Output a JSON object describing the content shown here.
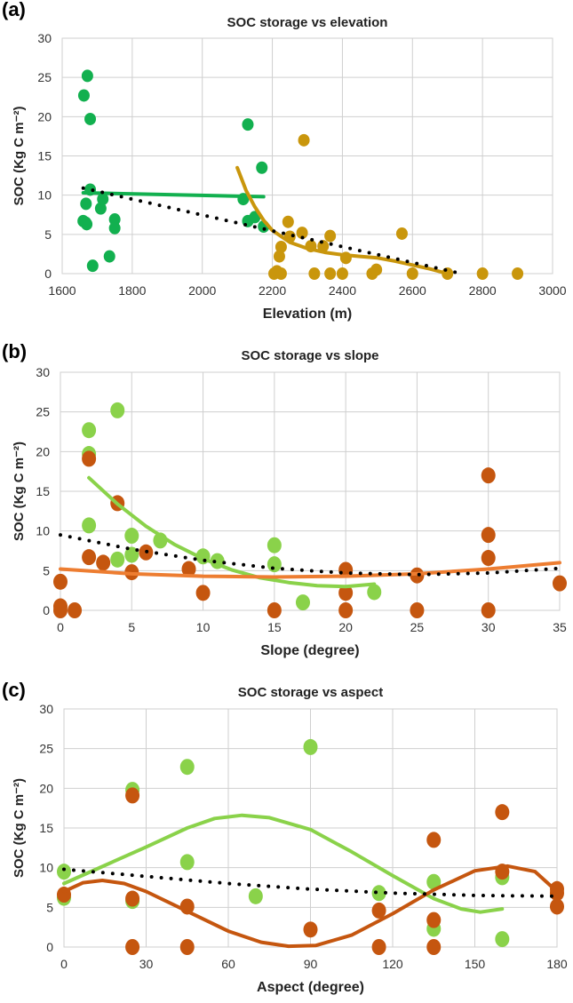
{
  "chart_data": [
    {
      "panel_label": "(a)",
      "type": "scatter",
      "title": "SOC storage vs elevation",
      "xlabel": "Elevation (m)",
      "ylabel": "SOC (Kg C m⁻²)",
      "xlim": [
        1600,
        3000
      ],
      "ylim": [
        0,
        30
      ],
      "xticks": [
        1600,
        1800,
        2000,
        2200,
        2400,
        2600,
        2800,
        3000
      ],
      "yticks": [
        0,
        5,
        10,
        15,
        20,
        25,
        30
      ],
      "grid": true,
      "series": [
        {
          "name": "low elevation",
          "color": "#12b04f",
          "kind": "points",
          "points": [
            [
              1662,
              22.7
            ],
            [
              1672,
              25.2
            ],
            [
              1680,
              19.7
            ],
            [
              1680,
              10.7
            ],
            [
              1668,
              8.9
            ],
            [
              1660,
              6.7
            ],
            [
              1670,
              6.3
            ],
            [
              1667,
              6.5
            ],
            [
              1687,
              1.0
            ],
            [
              1710,
              8.3
            ],
            [
              1716,
              9.5
            ],
            [
              1750,
              6.9
            ],
            [
              1750,
              5.8
            ],
            [
              1735,
              2.2
            ],
            [
              2130,
              19.0
            ],
            [
              2117,
              9.5
            ],
            [
              2130,
              6.7
            ],
            [
              2170,
              13.5
            ],
            [
              2150,
              7.2
            ],
            [
              2175,
              6.0
            ]
          ]
        },
        {
          "name": "high elevation",
          "color": "#c9960c",
          "kind": "points",
          "points": [
            [
              2290,
              17.0
            ],
            [
              2245,
              6.6
            ],
            [
              2285,
              5.2
            ],
            [
              2365,
              4.8
            ],
            [
              2570,
              5.1
            ],
            [
              2225,
              3.4
            ],
            [
              2220,
              2.2
            ],
            [
              2205,
              0
            ],
            [
              2213,
              0.3
            ],
            [
              2225,
              0
            ],
            [
              2320,
              0
            ],
            [
              2365,
              0
            ],
            [
              2400,
              0
            ],
            [
              2410,
              2.0
            ],
            [
              2310,
              3.5
            ],
            [
              2345,
              3.5
            ],
            [
              2485,
              0
            ],
            [
              2497,
              0.5
            ],
            [
              2600,
              0
            ],
            [
              2700,
              0
            ],
            [
              2800,
              0
            ],
            [
              2900,
              0
            ],
            [
              2250,
              4.7
            ]
          ]
        },
        {
          "name": "low elevation trend",
          "color": "#12b04f",
          "kind": "line",
          "points": [
            [
              1660,
              10.3
            ],
            [
              2175,
              9.8
            ]
          ]
        },
        {
          "name": "high elevation trend",
          "color": "#c9960c",
          "kind": "line",
          "points": [
            [
              2100,
              13.5
            ],
            [
              2125,
              10.6
            ],
            [
              2150,
              8.5
            ],
            [
              2175,
              6.8
            ],
            [
              2200,
              5.5
            ],
            [
              2250,
              4.0
            ],
            [
              2300,
              3.2
            ],
            [
              2350,
              2.7
            ],
            [
              2400,
              2.4
            ],
            [
              2450,
              2.2
            ],
            [
              2500,
              2.0
            ],
            [
              2550,
              1.6
            ],
            [
              2600,
              1.1
            ],
            [
              2650,
              0.6
            ],
            [
              2700,
              0
            ]
          ]
        },
        {
          "name": "overall trend",
          "color": "#000000",
          "kind": "dotted",
          "points": [
            [
              1660,
              10.9
            ],
            [
              2740,
              0
            ]
          ]
        }
      ]
    },
    {
      "panel_label": "(b)",
      "type": "scatter",
      "title": "SOC storage vs slope",
      "xlabel": "Slope (degree)",
      "ylabel": "SOC (Kg C m⁻²)",
      "xlim": [
        0,
        35
      ],
      "ylim": [
        0,
        30
      ],
      "xticks": [
        0,
        5,
        10,
        15,
        20,
        25,
        30,
        35
      ],
      "yticks": [
        0,
        5,
        10,
        15,
        20,
        25,
        30
      ],
      "grid": true,
      "series": [
        {
          "name": "green group",
          "color": "#8ad24a",
          "kind": "points",
          "points": [
            [
              2,
              22.7
            ],
            [
              2,
              19.7
            ],
            [
              4,
              25.2
            ],
            [
              2,
              10.7
            ],
            [
              4,
              6.4
            ],
            [
              5,
              9.4
            ],
            [
              5,
              7.0
            ],
            [
              7,
              8.8
            ],
            [
              10,
              6.8
            ],
            [
              11,
              6.2
            ],
            [
              15,
              8.2
            ],
            [
              15,
              5.8
            ],
            [
              17,
              1.0
            ],
            [
              22,
              2.3
            ]
          ]
        },
        {
          "name": "brown group",
          "color": "#c5560f",
          "kind": "points",
          "points": [
            [
              2,
              19.1
            ],
            [
              4,
              13.5
            ],
            [
              2,
              6.7
            ],
            [
              3,
              6.0
            ],
            [
              6,
              7.3
            ],
            [
              5,
              4.8
            ],
            [
              9,
              5.2
            ],
            [
              10,
              2.2
            ],
            [
              0,
              3.6
            ],
            [
              0,
              0.5
            ],
            [
              0,
              0
            ],
            [
              1,
              0
            ],
            [
              15,
              0
            ],
            [
              20,
              5.1
            ],
            [
              20,
              2.2
            ],
            [
              20,
              0
            ],
            [
              25,
              4.4
            ],
            [
              25,
              0
            ],
            [
              30,
              17.0
            ],
            [
              30,
              9.5
            ],
            [
              30,
              6.6
            ],
            [
              30,
              0
            ],
            [
              35,
              3.4
            ]
          ]
        },
        {
          "name": "green trend",
          "color": "#8ad24a",
          "kind": "line",
          "points": [
            [
              2,
              16.7
            ],
            [
              4,
              13.4
            ],
            [
              6,
              10.6
            ],
            [
              8,
              8.3
            ],
            [
              10,
              6.5
            ],
            [
              12,
              5.1
            ],
            [
              14,
              4.1
            ],
            [
              16,
              3.5
            ],
            [
              18,
              3.1
            ],
            [
              20,
              3.0
            ],
            [
              22,
              3.3
            ]
          ]
        },
        {
          "name": "brown trend",
          "color": "#ed7d31",
          "kind": "line",
          "points": [
            [
              0,
              5.2
            ],
            [
              5,
              4.6
            ],
            [
              10,
              4.3
            ],
            [
              15,
              4.2
            ],
            [
              20,
              4.3
            ],
            [
              25,
              4.6
            ],
            [
              30,
              5.2
            ],
            [
              35,
              6.0
            ]
          ]
        },
        {
          "name": "overall trend",
          "color": "#000000",
          "kind": "dotted",
          "points": [
            [
              0,
              9.5
            ],
            [
              5,
              7.7
            ],
            [
              10,
              6.3
            ],
            [
              15,
              5.3
            ],
            [
              20,
              4.7
            ],
            [
              25,
              4.5
            ],
            [
              30,
              4.7
            ],
            [
              35,
              5.3
            ]
          ]
        }
      ]
    },
    {
      "panel_label": "(c)",
      "type": "scatter",
      "title": "SOC storage vs aspect",
      "xlabel": "Aspect (degree)",
      "ylabel": "SOC (Kg C m⁻²)",
      "xlim": [
        0,
        180
      ],
      "ylim": [
        0,
        30
      ],
      "xticks": [
        0,
        30,
        60,
        90,
        120,
        150,
        180
      ],
      "yticks": [
        0,
        5,
        10,
        15,
        20,
        25,
        30
      ],
      "grid": true,
      "series": [
        {
          "name": "green group",
          "color": "#8ad24a",
          "kind": "points",
          "points": [
            [
              0,
              9.5
            ],
            [
              0,
              6.2
            ],
            [
              25,
              19.8
            ],
            [
              25,
              5.8
            ],
            [
              45,
              22.7
            ],
            [
              45,
              10.7
            ],
            [
              70,
              6.4
            ],
            [
              90,
              25.2
            ],
            [
              115,
              6.8
            ],
            [
              135,
              8.2
            ],
            [
              135,
              2.3
            ],
            [
              160,
              8.8
            ],
            [
              160,
              1.0
            ]
          ]
        },
        {
          "name": "brown group",
          "color": "#c5560f",
          "kind": "points",
          "points": [
            [
              0,
              6.6
            ],
            [
              25,
              19.1
            ],
            [
              25,
              6.1
            ],
            [
              25,
              0
            ],
            [
              45,
              5.1
            ],
            [
              45,
              0
            ],
            [
              90,
              2.2
            ],
            [
              115,
              4.6
            ],
            [
              115,
              0
            ],
            [
              135,
              13.5
            ],
            [
              135,
              3.4
            ],
            [
              135,
              0
            ],
            [
              160,
              17.0
            ],
            [
              160,
              9.5
            ],
            [
              180,
              7.3
            ],
            [
              180,
              6.8
            ],
            [
              180,
              5.1
            ]
          ]
        },
        {
          "name": "green trend",
          "color": "#8ad24a",
          "kind": "line",
          "points": [
            [
              0,
              8.0
            ],
            [
              15,
              10.3
            ],
            [
              30,
              12.6
            ],
            [
              45,
              15.0
            ],
            [
              55,
              16.2
            ],
            [
              65,
              16.6
            ],
            [
              75,
              16.3
            ],
            [
              90,
              14.8
            ],
            [
              105,
              12.0
            ],
            [
              120,
              9.0
            ],
            [
              135,
              6.1
            ],
            [
              145,
              4.8
            ],
            [
              152,
              4.4
            ],
            [
              160,
              4.8
            ]
          ]
        },
        {
          "name": "brown trend",
          "color": "#c5560f",
          "kind": "line",
          "points": [
            [
              0,
              7.0
            ],
            [
              7,
              8.1
            ],
            [
              14,
              8.4
            ],
            [
              22,
              8.0
            ],
            [
              30,
              7.0
            ],
            [
              45,
              4.5
            ],
            [
              60,
              2.0
            ],
            [
              72,
              0.6
            ],
            [
              82,
              0.1
            ],
            [
              92,
              0.2
            ],
            [
              105,
              1.5
            ],
            [
              120,
              4.2
            ],
            [
              135,
              7.2
            ],
            [
              150,
              9.6
            ],
            [
              162,
              10.2
            ],
            [
              172,
              9.5
            ],
            [
              180,
              7.0
            ]
          ]
        },
        {
          "name": "overall trend",
          "color": "#000000",
          "kind": "dotted",
          "points": [
            [
              0,
              9.8
            ],
            [
              30,
              8.9
            ],
            [
              60,
              8.0
            ],
            [
              90,
              7.3
            ],
            [
              120,
              6.8
            ],
            [
              150,
              6.5
            ],
            [
              180,
              6.4
            ]
          ]
        }
      ]
    }
  ]
}
